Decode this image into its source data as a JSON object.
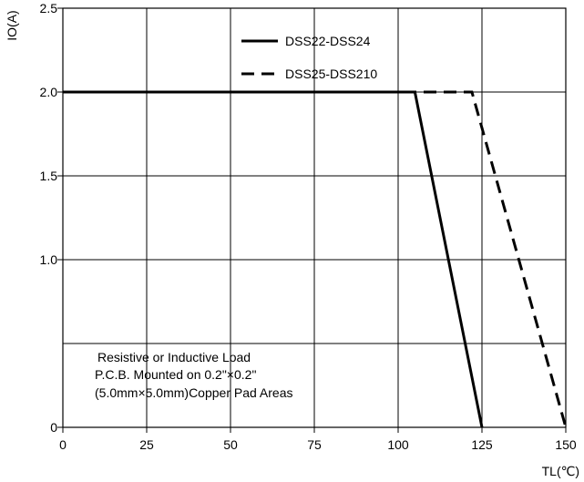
{
  "chart_data": {
    "type": "line",
    "title": "",
    "xlabel": "TL(℃)",
    "ylabel": "IO(A)",
    "xlim": [
      0,
      150
    ],
    "ylim": [
      0,
      2.5
    ],
    "grid": true,
    "legend_position": "top-right",
    "x_ticks": [
      0,
      25,
      50,
      75,
      100,
      125,
      150
    ],
    "x_tick_labels": [
      "0",
      "25",
      "50",
      "75",
      "100",
      "125",
      "150"
    ],
    "y_grid": [
      0,
      0.5,
      1.0,
      1.5,
      2.0,
      2.5
    ],
    "y_ticks": [
      0,
      1.0,
      1.5,
      2.0,
      2.5
    ],
    "y_tick_labels": [
      "0",
      "1.0",
      "1.5",
      "2.0",
      "2.5"
    ],
    "series": [
      {
        "name": "DSS22-DSS24",
        "style": "solid",
        "color": "#000000",
        "points": [
          [
            0,
            2.0
          ],
          [
            105,
            2.0
          ],
          [
            125,
            0
          ]
        ]
      },
      {
        "name": "DSS25-DSS210",
        "style": "dashed",
        "color": "#000000",
        "points": [
          [
            0,
            2.0
          ],
          [
            122,
            2.0
          ],
          [
            150,
            0
          ]
        ]
      }
    ],
    "annotation": [
      "Resistive or Inductive Load",
      "P.C.B. Mounted on 0.2\"×0.2\"",
      "(5.0mm×5.0mm)Copper Pad Areas"
    ]
  }
}
